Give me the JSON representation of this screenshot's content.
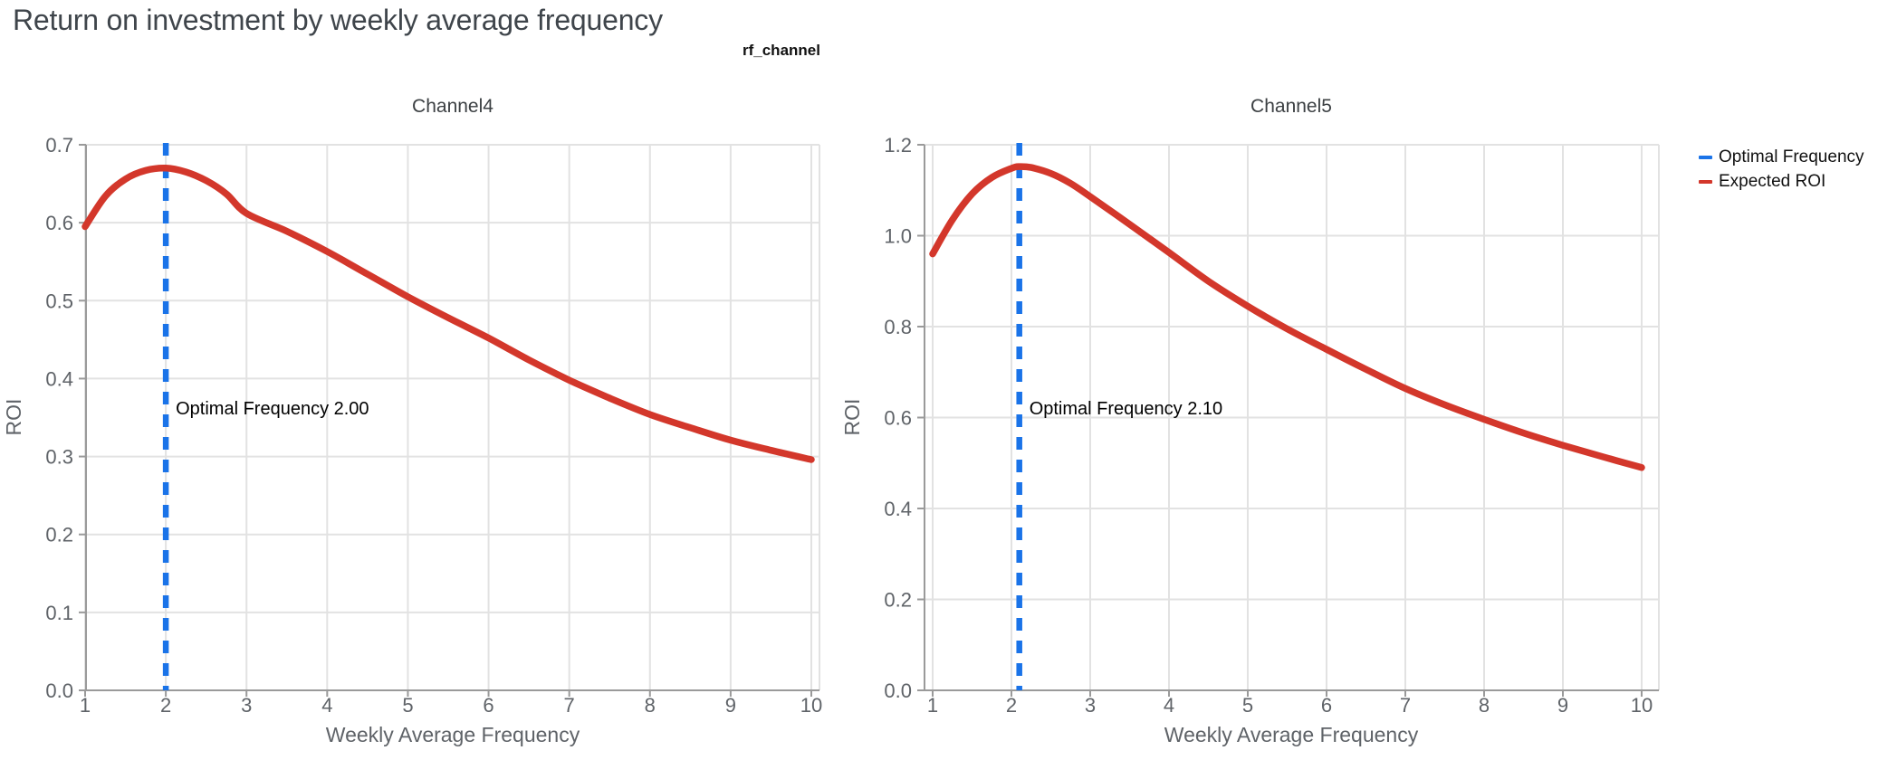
{
  "page": {
    "title": "Return on investment by weekly average frequency"
  },
  "figure": {
    "title": "rf_channel"
  },
  "legend": {
    "items": [
      {
        "label": "Optimal Frequency",
        "color": "#1a73e8"
      },
      {
        "label": "Expected ROI",
        "color": "#d3372b"
      }
    ]
  },
  "colors": {
    "optimal_frequency_line": "#1a73e8",
    "expected_roi_curve": "#d3372b",
    "gridline": "#e2e2e2",
    "axis_line": "#9a9a9a",
    "tick_label": "#5f6368",
    "chart_title": "#3c4043",
    "annotation_text": "#000000"
  },
  "chart_data": [
    {
      "type": "line",
      "title": "Channel4",
      "xlabel": "Weekly Average Frequency",
      "ylabel": "ROI",
      "xlim": [
        1,
        10.15
      ],
      "ylim": [
        0,
        0.7
      ],
      "grid": true,
      "xticks": [
        1,
        2,
        3,
        4,
        5,
        6,
        7,
        8,
        9,
        10
      ],
      "xticklabels": [
        "1",
        "2",
        "3",
        "4",
        "5",
        "6",
        "7",
        "8",
        "9",
        "10"
      ],
      "yticks": [
        0.0,
        0.1,
        0.2,
        0.3,
        0.4,
        0.5,
        0.6,
        0.7
      ],
      "yticklabels": [
        "0.0",
        "0.1",
        "0.2",
        "0.3",
        "0.4",
        "0.5",
        "0.6",
        "0.7"
      ],
      "optimal_frequency": 2.0,
      "annotation": "Optimal Frequency  2.00",
      "vline": {
        "name": "Optimal Frequency",
        "x": 2.0,
        "color": "#1a73e8",
        "style": "dashed"
      },
      "series": [
        {
          "name": "Expected ROI",
          "color": "#d3372b",
          "x": [
            1,
            1.25,
            1.5,
            1.75,
            2,
            2.25,
            2.5,
            2.75,
            3,
            3.5,
            4,
            4.5,
            5,
            5.5,
            6,
            6.5,
            7,
            7.5,
            8,
            8.5,
            9,
            9.5,
            10
          ],
          "y": [
            0.595,
            0.634,
            0.656,
            0.667,
            0.67,
            0.665,
            0.654,
            0.637,
            0.612,
            0.589,
            0.563,
            0.534,
            0.505,
            0.478,
            0.452,
            0.424,
            0.398,
            0.375,
            0.354,
            0.337,
            0.321,
            0.308,
            0.296
          ]
        }
      ]
    },
    {
      "type": "line",
      "title": "Channel5",
      "xlabel": "Weekly Average Frequency",
      "ylabel": "ROI",
      "xlim": [
        1,
        10.15
      ],
      "ylim": [
        0,
        1.2
      ],
      "grid": true,
      "xticks": [
        1,
        2,
        3,
        4,
        5,
        6,
        7,
        8,
        9,
        10
      ],
      "xticklabels": [
        "1",
        "2",
        "3",
        "4",
        "5",
        "6",
        "7",
        "8",
        "9",
        "10"
      ],
      "yticks": [
        0.0,
        0.2,
        0.4,
        0.6,
        0.8,
        1.0,
        1.2
      ],
      "yticklabels": [
        "0.0",
        "0.2",
        "0.4",
        "0.6",
        "0.8",
        "1.0",
        "1.2"
      ],
      "optimal_frequency": 2.1,
      "annotation": "Optimal Frequency  2.10",
      "vline": {
        "name": "Optimal Frequency",
        "x": 2.1,
        "color": "#1a73e8",
        "style": "dashed"
      },
      "series": [
        {
          "name": "Expected ROI",
          "color": "#d3372b",
          "x": [
            1,
            1.25,
            1.5,
            1.75,
            2,
            2.1,
            2.25,
            2.5,
            2.75,
            3,
            3.5,
            4,
            4.5,
            5,
            5.5,
            6,
            6.5,
            7,
            7.5,
            8,
            8.5,
            9,
            9.5,
            10
          ],
          "y": [
            0.96,
            1.035,
            1.092,
            1.128,
            1.148,
            1.152,
            1.15,
            1.137,
            1.115,
            1.086,
            1.025,
            0.963,
            0.9,
            0.845,
            0.795,
            0.75,
            0.706,
            0.664,
            0.628,
            0.596,
            0.566,
            0.539,
            0.514,
            0.49
          ]
        }
      ]
    }
  ]
}
